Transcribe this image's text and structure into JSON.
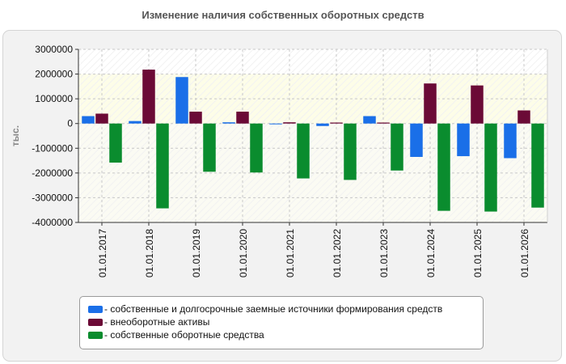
{
  "chart_data": {
    "type": "bar",
    "title": "Изменение наличия собственных оборотных средств",
    "ylabel": "тыс.",
    "xlabel": "",
    "ylim": [
      -4000000,
      3000000
    ],
    "yticks": [
      3000000,
      2000000,
      1000000,
      0,
      -1000000,
      -2000000,
      -3000000,
      -4000000
    ],
    "tick_labels": [
      "3000000",
      "2000000",
      "1000000",
      "0",
      "-1000000",
      "-2000000",
      "-3000000",
      "-4000000"
    ],
    "grid": true,
    "legend_position": "bottom",
    "categories": [
      "01.01.2017",
      "01.01.2018",
      "01.01.2019",
      "01.01.2020",
      "01.01.2021",
      "01.01.2022",
      "01.01.2023",
      "01.01.2024",
      "01.01.2025",
      "01.01.2026"
    ],
    "series": [
      {
        "name": "- собственные и долгосрочные заемные источники формирования средств",
        "color": "#1a6fe8",
        "values": [
          300000,
          100000,
          1880000,
          50000,
          -20000,
          -100000,
          300000,
          -1350000,
          -1320000,
          -1400000
        ]
      },
      {
        "name": "- внеоборотные активы",
        "color": "#6b0a36",
        "values": [
          400000,
          2180000,
          480000,
          480000,
          50000,
          40000,
          40000,
          1620000,
          1540000,
          530000
        ]
      },
      {
        "name": "- собственные оборотные средства",
        "color": "#0a8c2e",
        "values": [
          -1580000,
          -3430000,
          -1950000,
          -1980000,
          -2220000,
          -2280000,
          -1900000,
          -3530000,
          -3560000,
          -3400000
        ]
      }
    ]
  }
}
